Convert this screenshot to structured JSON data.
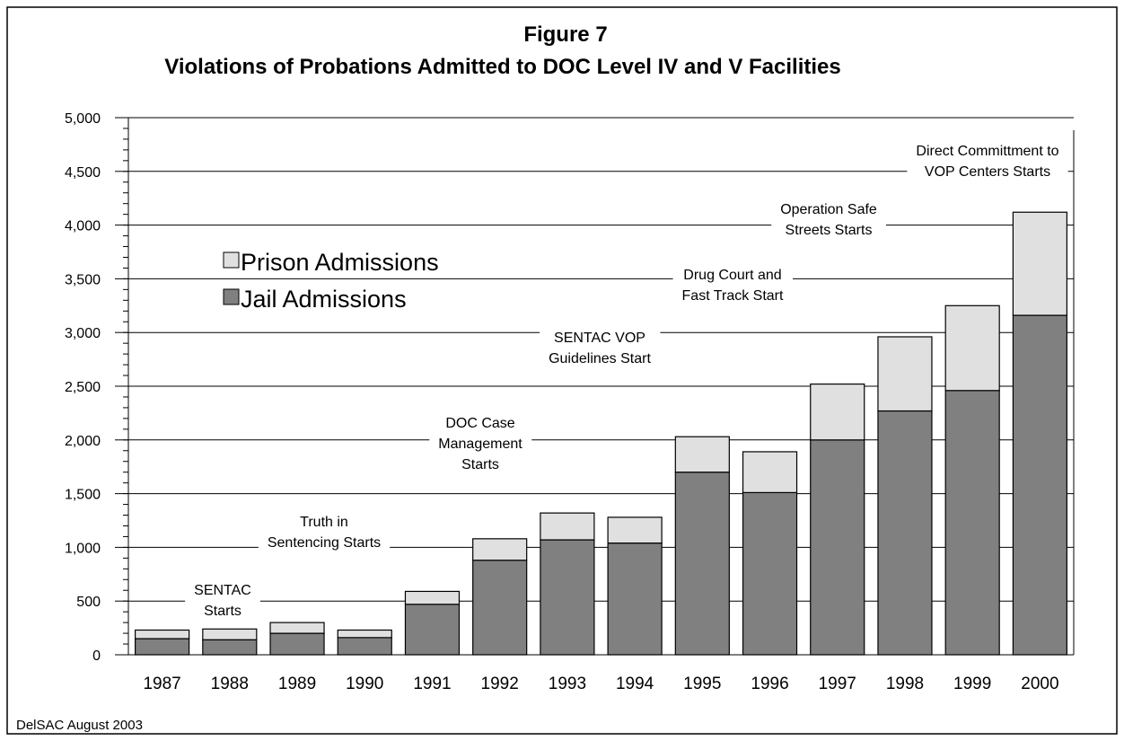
{
  "chart_data": {
    "type": "stacked_bar",
    "title": "Figure 7",
    "subtitle": "Violations of Probations Admitted to DOC Level IV and V Facilities",
    "source": "DelSAC August 2003",
    "categories": [
      "1987",
      "1988",
      "1989",
      "1990",
      "1991",
      "1992",
      "1993",
      "1994",
      "1995",
      "1996",
      "1997",
      "1998",
      "1999",
      "2000"
    ],
    "series": [
      {
        "name": "Jail Admissions",
        "color": "#808080",
        "values": [
          150,
          140,
          200,
          160,
          470,
          880,
          1070,
          1040,
          1700,
          1510,
          2000,
          2270,
          2460,
          3160
        ]
      },
      {
        "name": "Prison Admissions",
        "color": "#e0e0e0",
        "values": [
          80,
          100,
          100,
          70,
          120,
          200,
          250,
          240,
          330,
          380,
          520,
          690,
          790,
          960
        ]
      }
    ],
    "ylim": [
      0,
      5000
    ],
    "yticks": [
      0,
      {
        "value": 500,
        "label": "500"
      },
      {
        "value": 1000,
        "label": "1,000"
      },
      {
        "value": 1500,
        "label": "1,500"
      },
      {
        "value": 2000,
        "label": "2,000"
      },
      {
        "value": 2500,
        "label": "2,500"
      },
      {
        "value": 3000,
        "label": "3,000"
      },
      {
        "value": 3500,
        "label": "3,500"
      },
      {
        "value": 4000,
        "label": "4,000"
      },
      {
        "value": 4500,
        "label": "4,500"
      },
      {
        "value": 5000,
        "label": "5,000"
      }
    ],
    "grid": true,
    "annotations": [
      [
        "SENTAC",
        "Starts"
      ],
      [
        "Truth in",
        "Sentencing Starts"
      ],
      [
        "DOC Case",
        "Management",
        "Starts"
      ],
      [
        "SENTAC VOP",
        "Guidelines Start"
      ],
      [
        "Drug Court and",
        "Fast Track Start"
      ],
      [
        "Operation Safe",
        "Streets Starts"
      ],
      [
        "Direct Committment to",
        "VOP Centers Starts"
      ]
    ]
  }
}
